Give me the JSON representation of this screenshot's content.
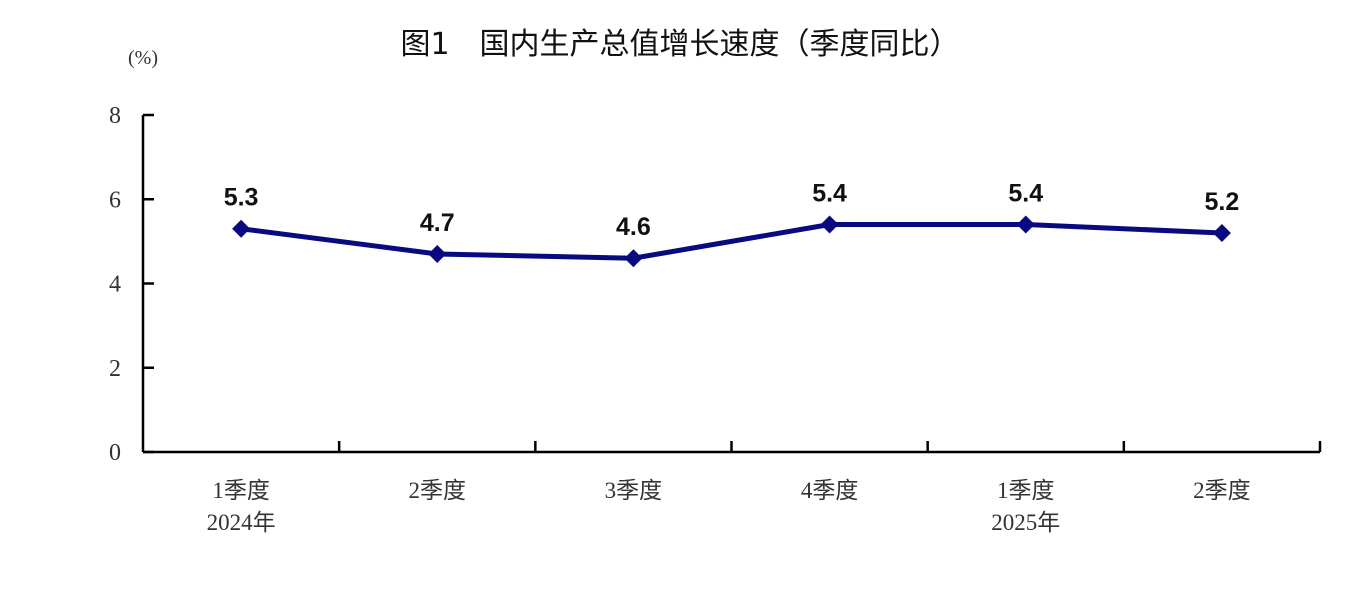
{
  "chart_data": {
    "type": "line",
    "title": "图1　国内生产总值增长速度（季度同比）",
    "ylabel": "(%)",
    "xlabel": "",
    "ylim": [
      0,
      8
    ],
    "yticks": [
      "0",
      "2",
      "4",
      "6",
      "8"
    ],
    "categories": [
      [
        "1季度",
        "2024年"
      ],
      [
        "2季度"
      ],
      [
        "3季度"
      ],
      [
        "4季度"
      ],
      [
        "1季度",
        "2025年"
      ],
      [
        "2季度"
      ]
    ],
    "series": [
      {
        "values": [
          5.3,
          4.7,
          4.6,
          5.4,
          5.4,
          5.2
        ],
        "labels": [
          "5.3",
          "4.7",
          "4.6",
          "5.4",
          "5.4",
          "5.2"
        ],
        "color": "#0a0a80",
        "marker": "diamond"
      }
    ],
    "grid": false,
    "legend": "none"
  }
}
